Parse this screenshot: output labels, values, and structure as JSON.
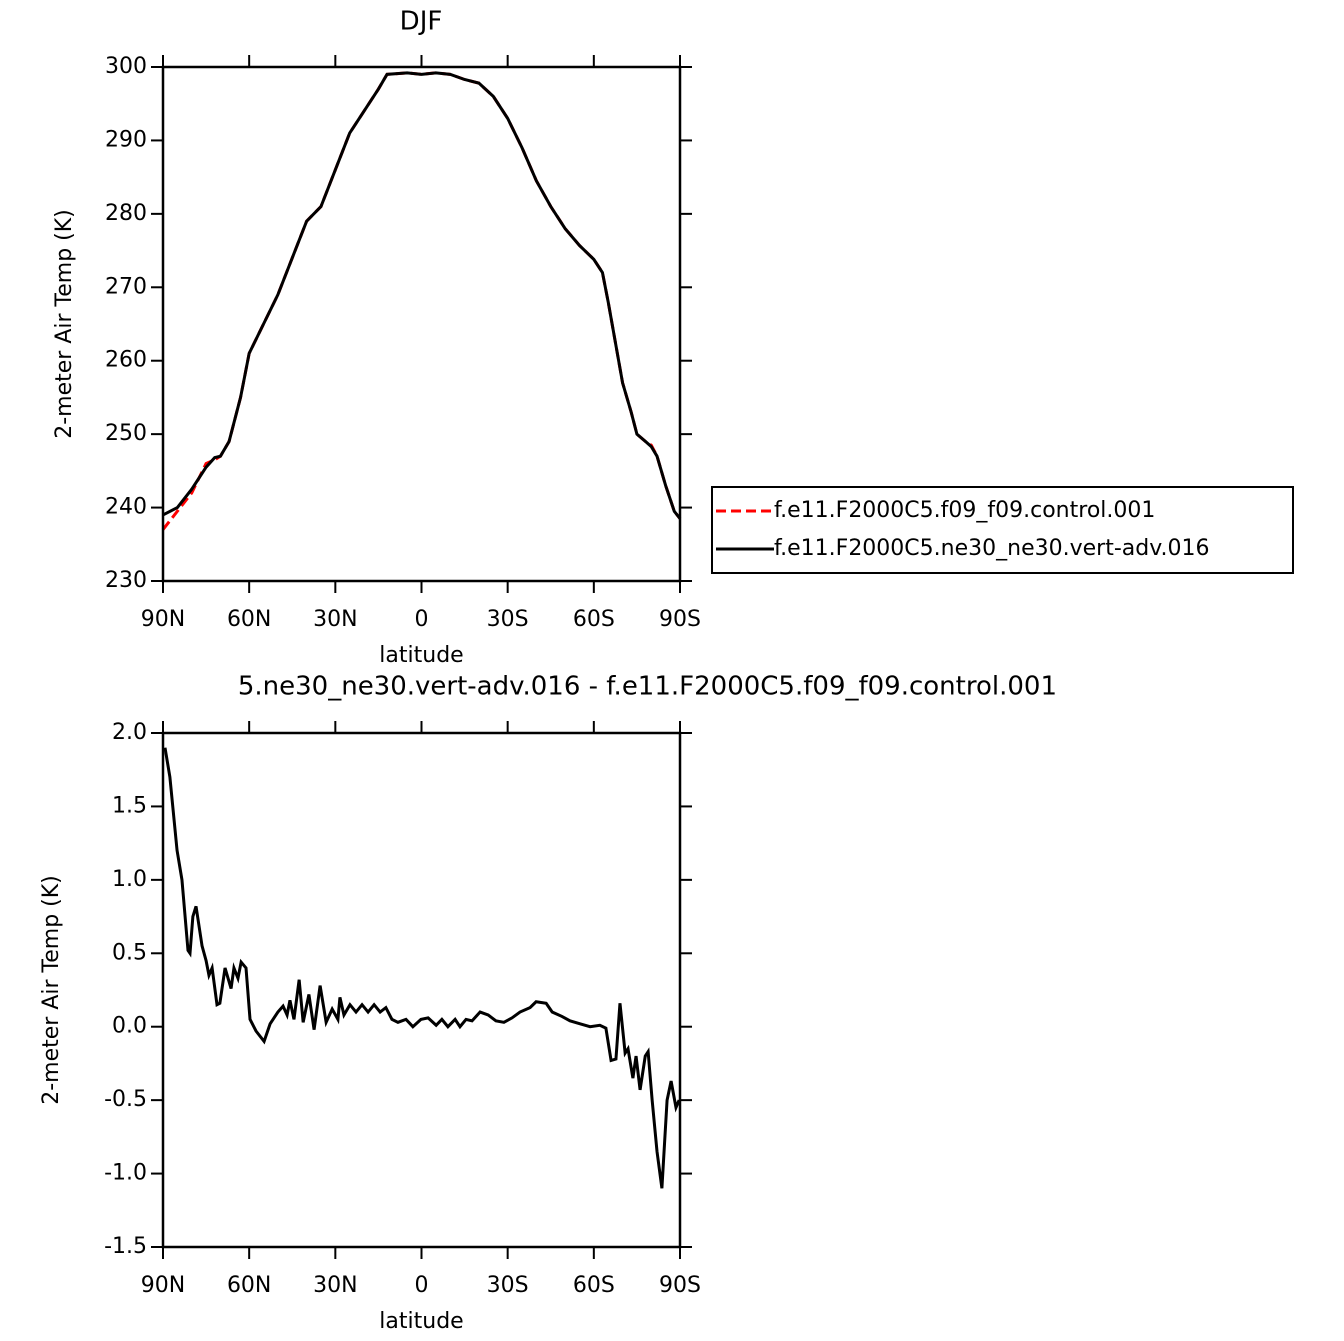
{
  "chart_data": [
    {
      "type": "line",
      "title": "DJF",
      "xlabel": "latitude",
      "ylabel": "2-meter Air Temp (K)",
      "x": [
        90,
        85,
        80,
        75,
        72,
        70,
        67,
        63,
        60,
        55,
        50,
        45,
        40,
        35,
        30,
        25,
        20,
        15,
        12,
        5,
        0,
        -5,
        -10,
        -15,
        -20,
        -25,
        -30,
        -35,
        -40,
        -45,
        -50,
        -55,
        -60,
        -63,
        -65,
        -70,
        -73,
        -75,
        -78,
        -80,
        -82,
        -85,
        -88,
        -90
      ],
      "series": [
        {
          "name": "f.e11.F2000C5.f09_f09.control.001",
          "color": "#ff0000",
          "dashed": true,
          "values": [
            237,
            239.5,
            242,
            246,
            246.5,
            247,
            249,
            255,
            261,
            265,
            269,
            274,
            279,
            281,
            286,
            291,
            294,
            297,
            299,
            299.2,
            299,
            299.2,
            299,
            298.3,
            297.8,
            296,
            293,
            289,
            284.5,
            281,
            278,
            275.7,
            273.8,
            272,
            268,
            257,
            253,
            250,
            249,
            248.5,
            247,
            243,
            239.5,
            238.5
          ]
        },
        {
          "name": "f.e11.F2000C5.ne30_ne30.vert-adv.016",
          "color": "#000000",
          "dashed": false,
          "values": [
            239,
            240,
            242.5,
            245.5,
            246.8,
            247,
            249,
            255,
            261,
            265,
            269,
            274,
            279,
            281,
            286,
            291,
            294,
            297,
            299,
            299.2,
            299,
            299.2,
            299,
            298.3,
            297.8,
            296,
            293,
            289,
            284.5,
            281,
            278,
            275.7,
            273.8,
            272,
            268,
            257,
            253,
            250,
            249,
            248.3,
            247,
            243,
            239.5,
            238.5
          ]
        }
      ],
      "xlim": [
        90,
        -90
      ],
      "xticks": [
        {
          "value": 90,
          "label": "90N"
        },
        {
          "value": 60,
          "label": "60N"
        },
        {
          "value": 30,
          "label": "30N"
        },
        0,
        {
          "value": -30,
          "label": "30S"
        },
        {
          "value": -60,
          "label": "60S"
        },
        {
          "value": -90,
          "label": "90S"
        }
      ],
      "ylim": [
        230,
        300
      ],
      "yticks": [
        230,
        240,
        250,
        260,
        270,
        280,
        290,
        300
      ],
      "legend": "right"
    },
    {
      "type": "line",
      "title": "5.ne30_ne30.vert-adv.016 - f.e11.F2000C5.f09_f09.control.001",
      "xlabel": "latitude",
      "ylabel": "2-meter Air Temp (K)",
      "x": [
        89.3,
        87.6,
        85.1,
        83.4,
        81.3,
        80.6,
        79.6,
        78.5,
        76.4,
        75,
        74,
        72.9,
        71.2,
        70.2,
        68.4,
        66.3,
        65.3,
        63.9,
        62.8,
        61.1,
        59.7,
        57.6,
        54.8,
        52.7,
        50,
        48.2,
        46.8,
        45.8,
        44.4,
        42.6,
        41.2,
        39.2,
        37.4,
        35.3,
        33.2,
        31.1,
        29.1,
        28.4,
        27,
        24.9,
        22.8,
        20.7,
        18.6,
        16.5,
        14.4,
        12.4,
        10.3,
        8.2,
        5.4,
        3,
        0.2,
        -2.3,
        -5.1,
        -7.1,
        -9.2,
        -11.7,
        -13.4,
        -15.5,
        -17.6,
        -20.4,
        -23.2,
        -25.9,
        -28.7,
        -31.5,
        -34.3,
        -37.8,
        -39.9,
        -43.4,
        -45.5,
        -48.9,
        -51.7,
        -55.2,
        -58.7,
        -62.1,
        -64.2,
        -66,
        -67.7,
        -69.1,
        -70.9,
        -71.9,
        -73.6,
        -74.7,
        -76.1,
        -77.9,
        -78.9,
        -80.3,
        -82,
        -83.7,
        -85.5,
        -86.9,
        -88.6,
        -89.7
      ],
      "values": [
        1.9,
        1.7,
        1.2,
        1.0,
        0.52,
        0.5,
        0.75,
        0.82,
        0.55,
        0.45,
        0.35,
        0.4,
        0.15,
        0.16,
        0.4,
        0.26,
        0.4,
        0.33,
        0.44,
        0.4,
        0.05,
        -0.03,
        -0.1,
        0.02,
        0.1,
        0.14,
        0.08,
        0.18,
        0.05,
        0.32,
        0.03,
        0.22,
        -0.02,
        0.28,
        0.03,
        0.12,
        0.05,
        0.2,
        0.08,
        0.15,
        0.1,
        0.15,
        0.1,
        0.15,
        0.1,
        0.13,
        0.05,
        0.03,
        0.05,
        0,
        0.05,
        0.06,
        0.01,
        0.05,
        0,
        0.05,
        0,
        0.05,
        0.04,
        0.1,
        0.08,
        0.04,
        0.03,
        0.06,
        0.1,
        0.13,
        0.17,
        0.16,
        0.1,
        0.07,
        0.04,
        0.02,
        0,
        0.01,
        -0.01,
        -0.23,
        -0.22,
        0.16,
        -0.18,
        -0.15,
        -0.35,
        -0.2,
        -0.43,
        -0.2,
        -0.17,
        -0.5,
        -0.85,
        -1.1,
        -0.5,
        -0.37,
        -0.55,
        -0.5
      ],
      "color": "#000000",
      "xlim": [
        90,
        -90
      ],
      "xticks": [
        {
          "value": 90,
          "label": "90N"
        },
        {
          "value": 60,
          "label": "60N"
        },
        {
          "value": 30,
          "label": "30N"
        },
        0,
        {
          "value": -30,
          "label": "30S"
        },
        {
          "value": -60,
          "label": "60S"
        },
        {
          "value": -90,
          "label": "90S"
        }
      ],
      "ylim": [
        -1.5,
        2.0
      ],
      "yticks": [
        -1.5,
        {
          "value": -1.0,
          "label": "-1.0"
        },
        -0.5,
        {
          "value": 0.0,
          "label": "0.0"
        },
        0.5,
        {
          "value": 1.0,
          "label": "1.0"
        },
        1.5,
        {
          "value": 2.0,
          "label": "2.0"
        }
      ]
    }
  ]
}
